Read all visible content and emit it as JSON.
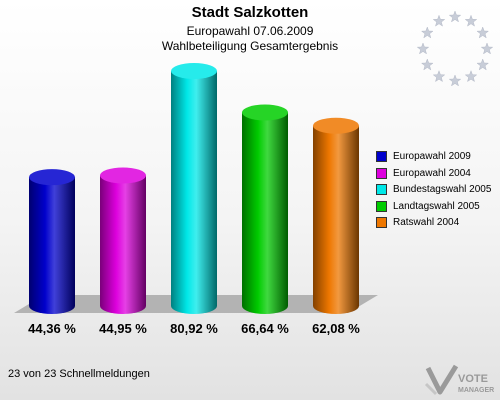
{
  "header": {
    "title": "Stadt Salzkotten",
    "subtitle1": "Europawahl 07.06.2009",
    "subtitle2": "Wahlbeteiligung Gesamtergebnis"
  },
  "chart_data": {
    "type": "bar",
    "categories": [
      "Europawahl 2009",
      "Europawahl 2004",
      "Bundestagswahl 2005",
      "Landtagswahl 2005",
      "Ratswahl 2004"
    ],
    "values": [
      44.36,
      44.95,
      80.92,
      66.64,
      62.08
    ],
    "value_labels": [
      "44,36 %",
      "44,95 %",
      "80,92 %",
      "66,64 %",
      "62,08 %"
    ],
    "colors": [
      "#0000cc",
      "#dd00dd",
      "#00e8e8",
      "#00cc00",
      "#ee7700"
    ],
    "ylim": [
      0,
      100
    ],
    "legend_position": "right",
    "grid": false
  },
  "legend": {
    "items": [
      "Europawahl 2009",
      "Europawahl 2004",
      "Bundestagswahl 2005",
      "Landtagswahl 2005",
      "Ratswahl 2004"
    ]
  },
  "footer": {
    "status": "23 von 23 Schnellmeldungen"
  },
  "logo": {
    "line1": "VOTE",
    "line2": "MANAGER"
  },
  "icons": {
    "eu_flag": "eu-stars-icon",
    "logo_mark": "vote-check-icon"
  }
}
